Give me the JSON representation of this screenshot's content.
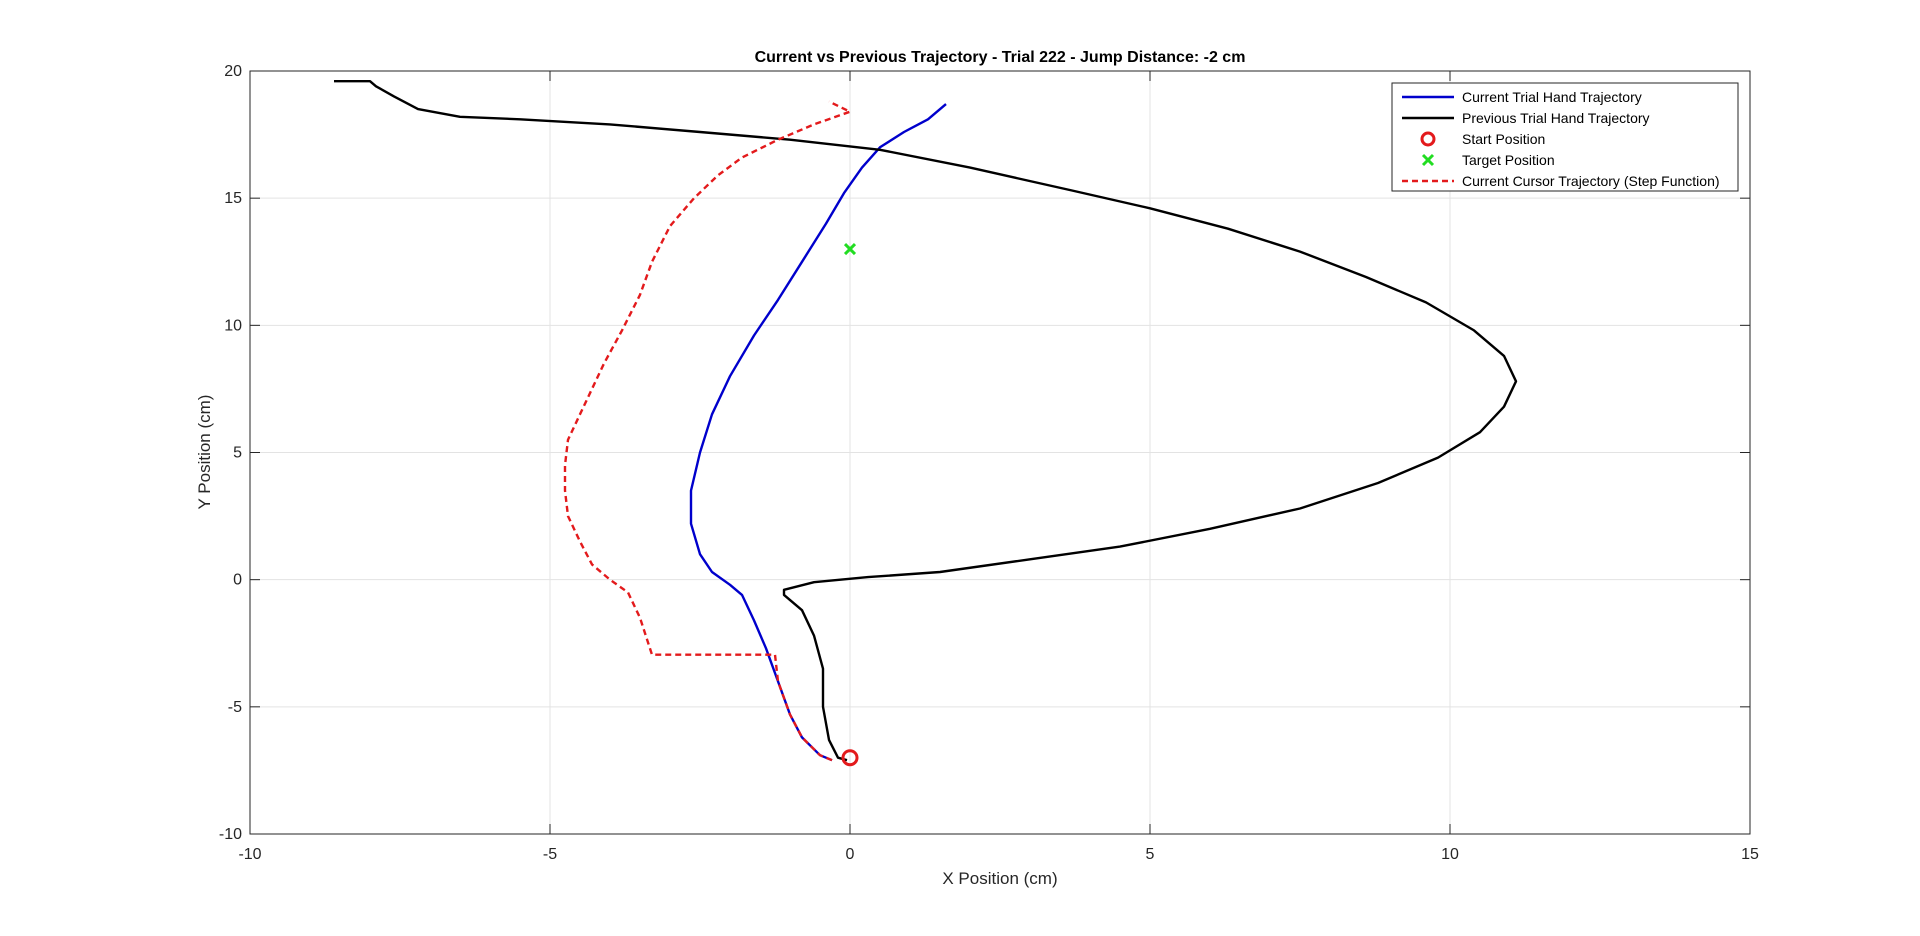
{
  "chart_data": {
    "type": "line",
    "title": "Current vs Previous Trajectory - Trial 222 - Jump Distance: -2 cm",
    "xlabel": "X Position (cm)",
    "ylabel": "Y Position (cm)",
    "xlim": [
      -10,
      15
    ],
    "ylim": [
      -10,
      20
    ],
    "xticks": [
      -10,
      -5,
      0,
      5,
      10,
      15
    ],
    "yticks": [
      -10,
      -5,
      0,
      5,
      10,
      15,
      20
    ],
    "grid": true,
    "legend_position": "top-right",
    "series": [
      {
        "name": "Current Trial Hand Trajectory",
        "kind": "line",
        "color": "#0000cc",
        "dash": "solid",
        "points": [
          [
            -0.3,
            -7.1
          ],
          [
            -0.5,
            -6.9
          ],
          [
            -0.8,
            -6.2
          ],
          [
            -1.0,
            -5.3
          ],
          [
            -1.2,
            -4.0
          ],
          [
            -1.4,
            -2.7
          ],
          [
            -1.6,
            -1.6
          ],
          [
            -1.8,
            -0.6
          ],
          [
            -2.0,
            -0.2
          ],
          [
            -2.3,
            0.3
          ],
          [
            -2.5,
            1.0
          ],
          [
            -2.65,
            2.2
          ],
          [
            -2.65,
            3.5
          ],
          [
            -2.5,
            5.0
          ],
          [
            -2.3,
            6.5
          ],
          [
            -2.0,
            8.0
          ],
          [
            -1.6,
            9.6
          ],
          [
            -1.2,
            11.0
          ],
          [
            -0.8,
            12.5
          ],
          [
            -0.4,
            14.0
          ],
          [
            -0.1,
            15.2
          ],
          [
            0.2,
            16.2
          ],
          [
            0.5,
            17.0
          ],
          [
            0.9,
            17.6
          ],
          [
            1.3,
            18.1
          ],
          [
            1.6,
            18.7
          ]
        ]
      },
      {
        "name": "Previous Trial Hand Trajectory",
        "kind": "line",
        "color": "#000000",
        "dash": "solid",
        "points": [
          [
            -0.05,
            -7.1
          ],
          [
            -0.2,
            -7.0
          ],
          [
            -0.35,
            -6.3
          ],
          [
            -0.45,
            -5.0
          ],
          [
            -0.45,
            -3.5
          ],
          [
            -0.6,
            -2.2
          ],
          [
            -0.8,
            -1.2
          ],
          [
            -1.1,
            -0.6
          ],
          [
            -1.1,
            -0.4
          ],
          [
            -0.6,
            -0.1
          ],
          [
            0.3,
            0.1
          ],
          [
            1.5,
            0.3
          ],
          [
            3.0,
            0.8
          ],
          [
            4.5,
            1.3
          ],
          [
            6.0,
            2.0
          ],
          [
            7.5,
            2.8
          ],
          [
            8.8,
            3.8
          ],
          [
            9.8,
            4.8
          ],
          [
            10.5,
            5.8
          ],
          [
            10.9,
            6.8
          ],
          [
            11.1,
            7.8
          ],
          [
            10.9,
            8.8
          ],
          [
            10.4,
            9.8
          ],
          [
            9.6,
            10.9
          ],
          [
            8.6,
            11.9
          ],
          [
            7.5,
            12.9
          ],
          [
            6.3,
            13.8
          ],
          [
            5.0,
            14.6
          ],
          [
            3.7,
            15.3
          ],
          [
            2.0,
            16.2
          ],
          [
            0.5,
            16.9
          ],
          [
            -1.0,
            17.3
          ],
          [
            -2.5,
            17.6
          ],
          [
            -4.0,
            17.9
          ],
          [
            -5.5,
            18.1
          ],
          [
            -6.5,
            18.2
          ],
          [
            -7.2,
            18.5
          ],
          [
            -7.6,
            19.0
          ],
          [
            -7.9,
            19.4
          ],
          [
            -8.0,
            19.6
          ],
          [
            -8.6,
            19.6
          ]
        ]
      },
      {
        "name": "Current Cursor Trajectory (Step Function)",
        "kind": "line",
        "color": "#e31a1c",
        "dash": "dashed",
        "points": [
          [
            -0.3,
            -7.1
          ],
          [
            -0.5,
            -6.9
          ],
          [
            -0.8,
            -6.2
          ],
          [
            -1.0,
            -5.3
          ],
          [
            -1.2,
            -4.0
          ],
          [
            -1.25,
            -2.95
          ],
          [
            -3.3,
            -2.95
          ],
          [
            -3.5,
            -1.5
          ],
          [
            -3.7,
            -0.5
          ],
          [
            -4.0,
            0.0
          ],
          [
            -4.3,
            0.6
          ],
          [
            -4.5,
            1.5
          ],
          [
            -4.7,
            2.5
          ],
          [
            -4.75,
            3.5
          ],
          [
            -4.75,
            4.5
          ],
          [
            -4.7,
            5.5
          ],
          [
            -4.5,
            6.5
          ],
          [
            -4.3,
            7.5
          ],
          [
            -4.1,
            8.5
          ],
          [
            -3.8,
            9.8
          ],
          [
            -3.5,
            11.2
          ],
          [
            -3.3,
            12.5
          ],
          [
            -3.0,
            13.9
          ],
          [
            -2.6,
            15.0
          ],
          [
            -2.2,
            15.9
          ],
          [
            -1.8,
            16.6
          ],
          [
            -1.2,
            17.3
          ],
          [
            -0.6,
            17.9
          ],
          [
            0.0,
            18.4
          ],
          [
            -0.35,
            18.8
          ]
        ]
      },
      {
        "name": "Start Position",
        "kind": "marker",
        "marker": "circle",
        "color": "#e31a1c",
        "points": [
          [
            0,
            -7
          ]
        ]
      },
      {
        "name": "Target Position",
        "kind": "marker",
        "marker": "x",
        "color": "#22dd22",
        "points": [
          [
            0,
            13
          ]
        ]
      }
    ]
  }
}
